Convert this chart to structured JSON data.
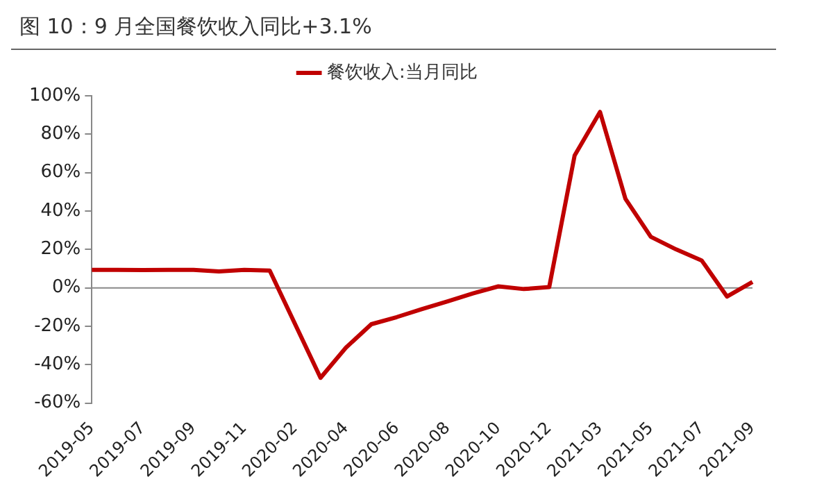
{
  "chart_data": {
    "type": "line",
    "title": "图 10：9 月全国餐饮收入同比+3.1%",
    "categories": [
      "2019-05",
      null,
      "2019-07",
      null,
      "2019-09",
      null,
      "2019-11",
      null,
      "2020-02",
      null,
      "2020-04",
      null,
      "2020-06",
      null,
      "2020-08",
      null,
      "2020-10",
      null,
      "2020-12",
      null,
      "2021-03",
      null,
      "2021-05",
      null,
      "2021-07",
      null,
      "2021-09"
    ],
    "series": [
      {
        "name": "餐饮收入:当月同比",
        "color": "#c00000",
        "values": [
          9.4,
          9.4,
          9.3,
          9.4,
          9.4,
          8.6,
          9.4,
          9.0,
          null,
          -46.8,
          -31.1,
          -18.9,
          -15.2,
          -11.0,
          -7.0,
          -2.9,
          0.8,
          -0.6,
          0.4,
          68.9,
          91.6,
          46.4,
          26.6,
          20.0,
          14.3,
          -4.5,
          3.1
        ]
      }
    ],
    "ylim": [
      -60,
      100
    ],
    "yticks": [
      {
        "value": -60,
        "label": "-60%"
      },
      {
        "value": -40,
        "label": "-40%"
      },
      {
        "value": -20,
        "label": "-20%"
      },
      {
        "value": 0,
        "label": "0%"
      },
      {
        "value": 20,
        "label": "20%"
      },
      {
        "value": 40,
        "label": "40%"
      },
      {
        "value": 60,
        "label": "60%"
      },
      {
        "value": 80,
        "label": "80%"
      },
      {
        "value": 100,
        "label": "100%"
      }
    ],
    "ref_lines": [
      {
        "axis": "y",
        "value": 0,
        "color": "#888888"
      }
    ],
    "legend": "top",
    "grid": false,
    "marker": "none",
    "line_style": "solid"
  }
}
